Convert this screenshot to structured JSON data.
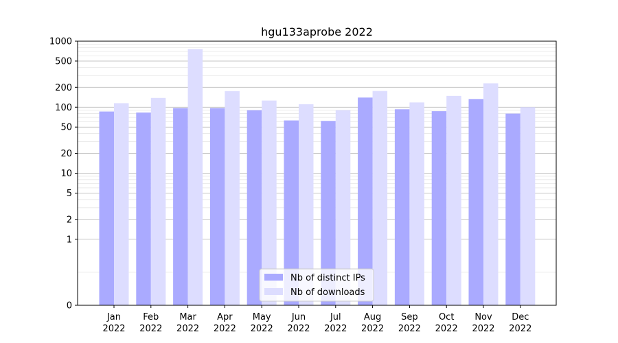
{
  "chart_data": {
    "type": "bar",
    "title": "hgu133aprobe 2022",
    "xlabel": "",
    "ylabel": "",
    "y_scale": "symlog",
    "ylim": [
      0,
      1000
    ],
    "y_ticks": [
      0,
      1,
      2,
      5,
      10,
      20,
      50,
      100,
      200,
      500,
      1000
    ],
    "grid": true,
    "legend_position": "bottom-center",
    "categories": [
      [
        "Jan",
        "2022"
      ],
      [
        "Feb",
        "2022"
      ],
      [
        "Mar",
        "2022"
      ],
      [
        "Apr",
        "2022"
      ],
      [
        "May",
        "2022"
      ],
      [
        "Jun",
        "2022"
      ],
      [
        "Jul",
        "2022"
      ],
      [
        "Aug",
        "2022"
      ],
      [
        "Sep",
        "2022"
      ],
      [
        "Oct",
        "2022"
      ],
      [
        "Nov",
        "2022"
      ],
      [
        "Dec",
        "2022"
      ]
    ],
    "series": [
      {
        "name": "Nb of distinct IPs",
        "color": "#aaaaff",
        "values": [
          86,
          83,
          97,
          97,
          90,
          63,
          62,
          140,
          93,
          87,
          133,
          80
        ]
      },
      {
        "name": "Nb of downloads",
        "color": "#ddddff",
        "values": [
          115,
          138,
          760,
          175,
          126,
          111,
          90,
          176,
          118,
          148,
          230,
          100
        ]
      }
    ]
  }
}
